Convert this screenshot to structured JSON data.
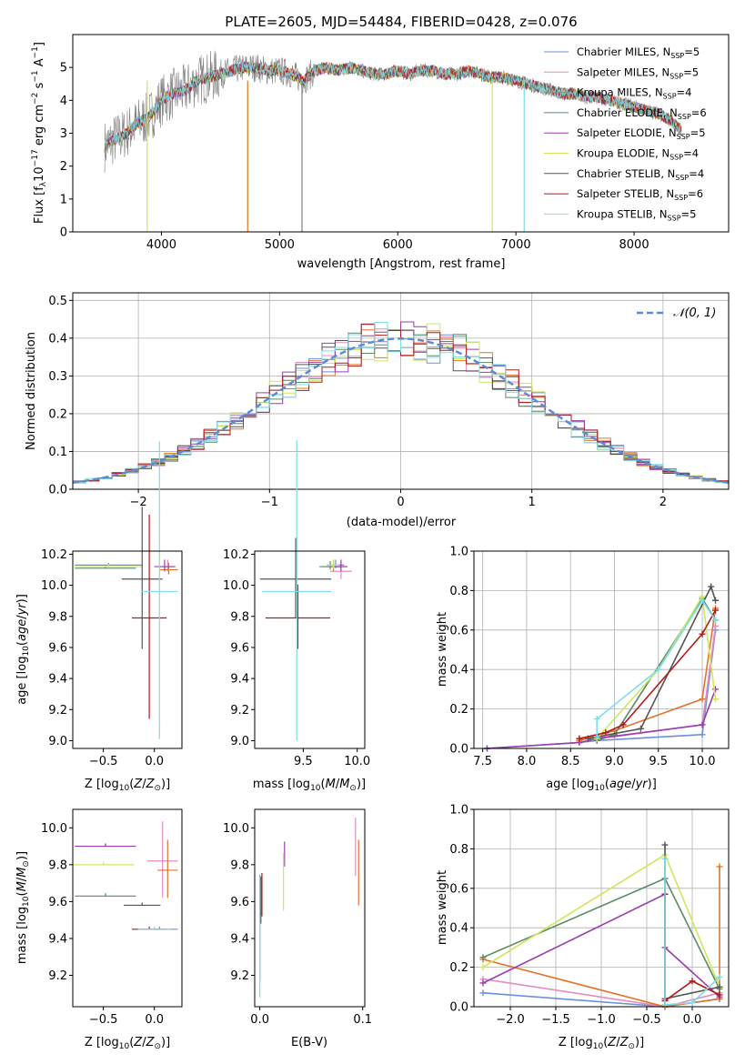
{
  "figure_title": "PLATE=2605, MJD=54484, FIBERID=0428, z=0.076",
  "models": [
    {
      "name": "Chabrier MILES, N",
      "sub": "SSP",
      "tail": "=5",
      "color": "#6d8fdb"
    },
    {
      "name": "Salpeter MILES, N",
      "sub": "SSP",
      "tail": "=5",
      "color": "#e38cc2"
    },
    {
      "name": "Kroupa MILES, N",
      "sub": "SSP",
      "tail": "=4",
      "color": "#e3742a"
    },
    {
      "name": "Chabrier ELODIE, N",
      "sub": "SSP",
      "tail": "=6",
      "color": "#5a8a66"
    },
    {
      "name": "Salpeter ELODIE, N",
      "sub": "SSP",
      "tail": "=5",
      "color": "#9a3db0"
    },
    {
      "name": "Kroupa ELODIE, N",
      "sub": "SSP",
      "tail": "=4",
      "color": "#cde85a"
    },
    {
      "name": "Chabrier STELIB, N",
      "sub": "SSP",
      "tail": "=4",
      "color": "#555555"
    },
    {
      "name": "Salpeter STELIB, N",
      "sub": "SSP",
      "tail": "=6",
      "color": "#b01b1b"
    },
    {
      "name": "Kroupa STELIB, N",
      "sub": "SSP",
      "tail": "=5",
      "color": "#7fdde6"
    }
  ],
  "normal_label": "𝒩(0, 1)",
  "chart_data": [
    {
      "id": "spectrum",
      "type": "line",
      "title": "PLATE=2605, MJD=54484, FIBERID=0428, z=0.076",
      "xlabel": "wavelength [Angstrom, rest frame]",
      "ylabel": "Flux [f_λ 10^-17 erg cm^-2 s^-1 A^-1]",
      "xlim": [
        3250,
        8800
      ],
      "ylim": [
        0,
        6
      ],
      "xticks": [
        4000,
        5000,
        6000,
        7000,
        8000
      ],
      "yticks": [
        0,
        1,
        2,
        3,
        4,
        5
      ],
      "grid": false,
      "legend": "right",
      "data_series": {
        "name": "data",
        "color": "#808080",
        "x": [
          3520,
          3600,
          3700,
          3800,
          3900,
          4000,
          4100,
          4200,
          4300,
          4400,
          4500,
          4600,
          4700,
          4800,
          4900,
          5000,
          5100,
          5200,
          5300,
          5400,
          5500,
          5600,
          5700,
          5800,
          5900,
          6000,
          6100,
          6200,
          6300,
          6400,
          6500,
          6600,
          6700,
          6800,
          6900,
          7000,
          7100,
          7200,
          7300,
          7400,
          7500,
          7600,
          7700,
          7800,
          7900,
          8000,
          8100,
          8200,
          8300,
          8400
        ],
        "y": [
          2.6,
          2.8,
          3.0,
          3.3,
          3.5,
          4.0,
          4.2,
          4.3,
          4.6,
          4.7,
          4.8,
          4.9,
          5.0,
          5.0,
          4.9,
          4.9,
          4.8,
          4.6,
          4.9,
          5.0,
          4.9,
          5.0,
          4.9,
          4.8,
          4.8,
          4.9,
          4.8,
          4.9,
          4.9,
          4.8,
          4.8,
          4.9,
          4.8,
          4.7,
          4.7,
          4.6,
          4.5,
          4.4,
          4.3,
          4.2,
          4.2,
          4.1,
          4.1,
          4.0,
          3.9,
          3.8,
          3.7,
          3.6,
          3.4,
          3.1
        ]
      },
      "model_fit": {
        "x": [
          3520,
          3600,
          3700,
          3800,
          3900,
          4000,
          4100,
          4200,
          4300,
          4400,
          4500,
          4600,
          4700,
          4800,
          4900,
          5000,
          5100,
          5200,
          5300,
          5400,
          5500,
          5600,
          5700,
          5800,
          5900,
          6000,
          6100,
          6200,
          6300,
          6400,
          6500,
          6600,
          6700,
          6800,
          6900,
          7000,
          7100,
          7200,
          7300,
          7400,
          7500,
          7600,
          7700,
          7800,
          7900,
          8000,
          8100,
          8200,
          8300,
          8400
        ],
        "y": [
          2.6,
          2.8,
          3.0,
          3.3,
          3.5,
          4.0,
          4.2,
          4.3,
          4.6,
          4.7,
          4.8,
          4.9,
          5.0,
          5.0,
          4.9,
          4.9,
          4.8,
          4.6,
          4.9,
          5.0,
          4.9,
          5.0,
          4.9,
          4.8,
          4.8,
          4.9,
          4.8,
          4.9,
          4.9,
          4.8,
          4.8,
          4.9,
          4.8,
          4.7,
          4.7,
          4.6,
          4.5,
          4.4,
          4.3,
          4.2,
          4.2,
          4.1,
          4.1,
          4.0,
          3.9,
          3.8,
          3.7,
          3.6,
          3.4,
          3.1
        ]
      }
    },
    {
      "id": "residuals",
      "type": "line",
      "xlabel": "(data-model)/error",
      "ylabel": "Normed distribution",
      "xlim": [
        -2.5,
        2.5
      ],
      "ylim": [
        0,
        0.52
      ],
      "xticks": [
        -2,
        -1,
        0,
        1,
        2
      ],
      "yticks": [
        0.0,
        0.1,
        0.2,
        0.3,
        0.4,
        0.5
      ],
      "grid": true,
      "legend": "top-right",
      "series": [
        {
          "name": "𝒩(0, 1)",
          "style": "dashed",
          "color": "#5b8bd9"
        }
      ],
      "histogram_bin_width": 0.1
    },
    {
      "id": "z_age",
      "type": "scatter",
      "xlabel": "Z [log10(Z/Z⊙)]",
      "ylabel": "age [log10(age/yr)]",
      "xlim": [
        -0.8,
        0.27
      ],
      "ylim": [
        8.95,
        10.22
      ],
      "xticks": [
        -0.5,
        0.0
      ],
      "yticks": [
        9.0,
        9.2,
        9.4,
        9.6,
        9.8,
        10.0,
        10.2
      ],
      "points": [
        {
          "x": -0.45,
          "xerr": 0.33,
          "y": 10.13,
          "yerr": 0.0
        },
        {
          "x": 0.13,
          "xerr": 0.08,
          "y": 10.12,
          "yerr": 0.03
        },
        {
          "x": 0.14,
          "xerr": 0.09,
          "y": 10.1,
          "yerr": 0.03
        },
        {
          "x": -0.48,
          "xerr": 0.3,
          "y": 10.11,
          "yerr": 0.0
        },
        {
          "x": 0.1,
          "xerr": 0.1,
          "y": 10.12,
          "yerr": 0.03
        },
        {
          "x": -0.45,
          "xerr": 0.33,
          "y": 10.12,
          "yerr": 0.0
        },
        {
          "x": -0.12,
          "xerr": 0.2,
          "y": 10.04,
          "yerr": 0.45
        },
        {
          "x": -0.05,
          "xerr": 0.17,
          "y": 9.79,
          "yerr": 0.65
        },
        {
          "x": 0.05,
          "xerr": 0.18,
          "y": 9.96,
          "yerr": 0.95
        }
      ]
    },
    {
      "id": "mass_age",
      "type": "scatter",
      "xlabel": "mass [log10(M/M⊙)]",
      "ylabel": "",
      "xlim": [
        9.05,
        10.07
      ],
      "ylim": [
        8.95,
        10.22
      ],
      "xticks": [
        9.5,
        10.0
      ],
      "yticks": [
        9.0,
        9.2,
        9.4,
        9.6,
        9.8,
        10.0,
        10.2
      ],
      "points": [
        {
          "x": 9.8,
          "xerr": 0.08,
          "y": 10.13,
          "yerr": 0.02
        },
        {
          "x": 9.85,
          "xerr": 0.1,
          "y": 10.09,
          "yerr": 0.05
        },
        {
          "x": 9.78,
          "xerr": 0.1,
          "y": 10.12,
          "yerr": 0.03
        },
        {
          "x": 9.75,
          "xerr": 0.1,
          "y": 10.12,
          "yerr": 0.02
        },
        {
          "x": 9.85,
          "xerr": 0.06,
          "y": 10.12,
          "yerr": 0.03
        },
        {
          "x": 9.78,
          "xerr": 0.05,
          "y": 10.13,
          "yerr": 0.02
        },
        {
          "x": 9.43,
          "xerr": 0.33,
          "y": 10.04,
          "yerr": 0.25
        },
        {
          "x": 9.45,
          "xerr": 0.3,
          "y": 9.79,
          "yerr": 0.2
        },
        {
          "x": 9.44,
          "xerr": 0.32,
          "y": 9.96,
          "yerr": 0.96
        }
      ]
    },
    {
      "id": "age_weight",
      "type": "line",
      "xlabel": "age [log10(age/yr)]",
      "ylabel": "mass weight",
      "xlim": [
        7.4,
        10.3
      ],
      "ylim": [
        0,
        1
      ],
      "xticks": [
        7.5,
        8.0,
        8.5,
        9.0,
        9.5,
        10.0
      ],
      "yticks": [
        0.0,
        0.2,
        0.4,
        0.6,
        0.8,
        1.0
      ],
      "grid": true,
      "series": [
        {
          "x": [
            7.55,
            8.6,
            8.8,
            10.0,
            10.15
          ],
          "y": [
            0.0,
            0.03,
            0.04,
            0.07,
            0.6
          ]
        },
        {
          "x": [
            8.6,
            9.0,
            10.0,
            10.15
          ],
          "y": [
            0.05,
            0.06,
            0.12,
            0.62
          ]
        },
        {
          "x": [
            8.6,
            9.0,
            10.0,
            10.15
          ],
          "y": [
            0.04,
            0.09,
            0.25,
            0.71
          ]
        },
        {
          "x": [
            8.8,
            9.0,
            10.0,
            10.15
          ],
          "y": [
            0.04,
            0.07,
            0.76,
            0.65
          ]
        },
        {
          "x": [
            7.55,
            8.6,
            8.8,
            10.0,
            10.15
          ],
          "y": [
            0.0,
            0.03,
            0.05,
            0.12,
            0.3
          ]
        },
        {
          "x": [
            8.8,
            9.5,
            10.0,
            10.15
          ],
          "y": [
            0.05,
            0.4,
            0.77,
            0.25
          ]
        },
        {
          "x": [
            8.7,
            9.3,
            10.1,
            10.15
          ],
          "y": [
            0.05,
            0.1,
            0.82,
            0.75
          ]
        },
        {
          "x": [
            8.6,
            8.9,
            9.1,
            10.0,
            10.15
          ],
          "y": [
            0.05,
            0.08,
            0.12,
            0.58,
            0.7
          ]
        },
        {
          "x": [
            8.8,
            8.8,
            9.5,
            10.0,
            10.15
          ],
          "y": [
            0.06,
            0.15,
            0.4,
            0.75,
            0.65
          ]
        }
      ]
    },
    {
      "id": "z_mass",
      "type": "scatter",
      "xlabel": "Z [log10(Z/Z⊙)]",
      "ylabel": "mass [log10(M/M⊙)]",
      "xlim": [
        -0.8,
        0.27
      ],
      "ylim": [
        9.03,
        10.1
      ],
      "xticks": [
        -0.5,
        0.0
      ],
      "yticks": [
        9.2,
        9.4,
        9.6,
        9.8,
        10.0
      ],
      "points": [
        {
          "x": 0.05,
          "xerr": 0.18,
          "y": 9.45,
          "yerr": 0.0
        },
        {
          "x": 0.08,
          "xerr": 0.15,
          "y": 9.82,
          "yerr": 0.2
        },
        {
          "x": 0.13,
          "xerr": 0.1,
          "y": 9.77,
          "yerr": 0.15
        },
        {
          "x": -0.48,
          "xerr": 0.3,
          "y": 9.63,
          "yerr": 0.0
        },
        {
          "x": -0.48,
          "xerr": 0.3,
          "y": 9.9,
          "yerr": 0.0
        },
        {
          "x": -0.5,
          "xerr": 0.3,
          "y": 9.8,
          "yerr": 0.0
        },
        {
          "x": -0.12,
          "xerr": 0.18,
          "y": 9.58,
          "yerr": 0.0
        },
        {
          "x": -0.05,
          "xerr": 0.17,
          "y": 9.45,
          "yerr": 0.0
        },
        {
          "x": 0.0,
          "xerr": 0.16,
          "y": 9.45,
          "yerr": 0.0
        }
      ]
    },
    {
      "id": "ebv_mass",
      "type": "scatter",
      "xlabel": "E(B-V)",
      "ylabel": "",
      "xlim": [
        -0.005,
        0.102
      ],
      "ylim": [
        9.03,
        10.1
      ],
      "xticks": [
        0.0,
        0.1
      ],
      "yticks": [
        9.2,
        9.4,
        9.6,
        9.8,
        10.0
      ],
      "points": [
        {
          "x": 0.0,
          "y": 9.45,
          "yerr": 0.28
        },
        {
          "x": 0.093,
          "y": 9.89,
          "yerr": 0.15
        },
        {
          "x": 0.096,
          "y": 9.75,
          "yerr": 0.17
        },
        {
          "x": 0.0,
          "y": 9.6,
          "yerr": 0.12
        },
        {
          "x": 0.024,
          "y": 9.85,
          "yerr": 0.06
        },
        {
          "x": 0.023,
          "y": 9.7,
          "yerr": 0.15
        },
        {
          "x": 0.001,
          "y": 9.6,
          "yerr": 0.12
        },
        {
          "x": 0.002,
          "y": 9.63,
          "yerr": 0.11
        },
        {
          "x": 0.0,
          "y": 9.4,
          "yerr": 0.32
        }
      ]
    },
    {
      "id": "z_weight",
      "type": "line",
      "xlabel": "Z [log10(Z/Z⊙)]",
      "ylabel": "mass weight",
      "xlim": [
        -2.4,
        0.4
      ],
      "ylim": [
        0,
        1
      ],
      "xticks": [
        -2.0,
        -1.5,
        -1.0,
        -0.5,
        0.0
      ],
      "yticks": [
        0.0,
        0.2,
        0.4,
        0.6,
        0.8,
        1.0
      ],
      "grid": true,
      "series": [
        {
          "x": [
            -2.3,
            -0.3,
            0.3
          ],
          "y": [
            0.07,
            0.0,
            0.04
          ]
        },
        {
          "x": [
            -2.3,
            -0.3,
            0.3
          ],
          "y": [
            0.14,
            0.0,
            0.07
          ]
        },
        {
          "x": [
            -2.3,
            -0.3,
            0.3,
            0.3
          ],
          "y": [
            0.24,
            0.0,
            0.04,
            0.71
          ]
        },
        {
          "x": [
            -2.3,
            -0.3,
            0.3
          ],
          "y": [
            0.25,
            0.65,
            0.09
          ]
        },
        {
          "x": [
            -2.3,
            -0.3,
            -0.3,
            0.3
          ],
          "y": [
            0.12,
            0.57,
            0.3,
            0.05
          ]
        },
        {
          "x": [
            -2.3,
            -0.3,
            0.3
          ],
          "y": [
            0.2,
            0.77,
            0.1
          ]
        },
        {
          "x": [
            -0.3,
            -0.3,
            0.3
          ],
          "y": [
            0.82,
            0.04,
            0.1
          ]
        },
        {
          "x": [
            -0.3,
            -0.3,
            0.0,
            0.3
          ],
          "y": [
            0.57,
            0.03,
            0.13,
            0.06
          ]
        },
        {
          "x": [
            -0.3,
            -0.3,
            0.0,
            0.3
          ],
          "y": [
            0.75,
            0.01,
            0.02,
            0.15
          ]
        }
      ]
    }
  ]
}
